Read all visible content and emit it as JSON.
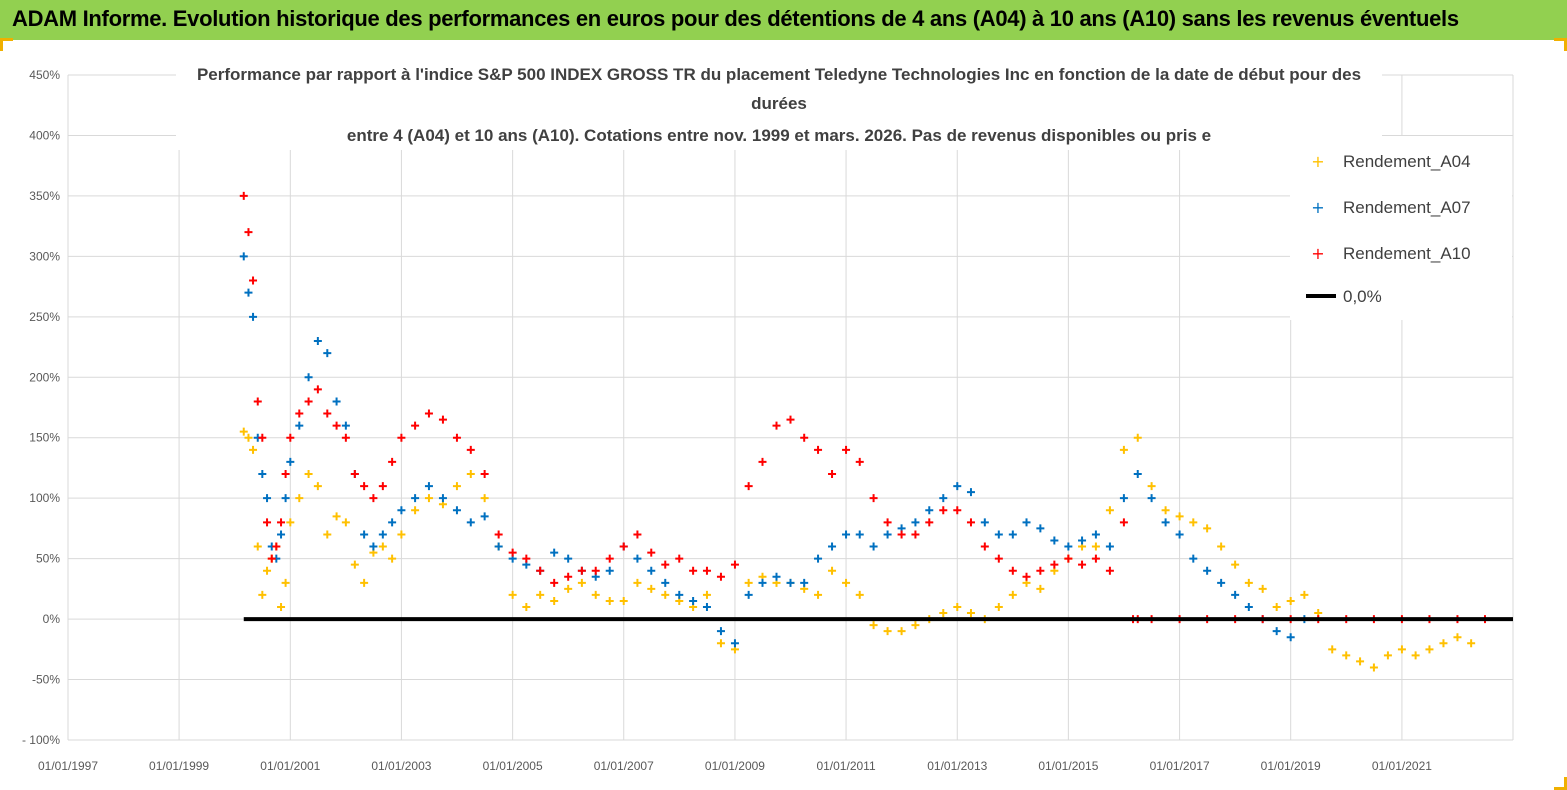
{
  "banner": {
    "title": "ADAM Informe. Evolution historique des performances en euros pour des détentions de 4 ans (A04) à 10 ans (A10) sans les revenus éventuels"
  },
  "colors": {
    "banner": "#92d050",
    "A04": "#ffc000",
    "A07": "#0070c0",
    "A10": "#ff0000",
    "zero": "#000000",
    "grid": "#d9d9d9"
  },
  "chart_data": {
    "type": "scatter",
    "title_lines": [
      "Performance par rapport à l'indice S&P 500 INDEX GROSS TR  du placement Teledyne Technologies Inc en fonction de la date de début pour des",
      "durées",
      "entre 4 (A04) et 10 ans (A10).  Cotations entre nov. 1999 et mars. 2026. Pas de  revenus disponibles ou pris e"
    ],
    "y_ticks": [
      "450%",
      "400%",
      "350%",
      "300%",
      "250%",
      "200%",
      "150%",
      "100%",
      "50%",
      "0%",
      "-50%",
      "- 100%"
    ],
    "x_ticks": [
      "01/01/1997",
      "01/01/1999",
      "01/01/2001",
      "01/01/2003",
      "01/01/2005",
      "01/01/2007",
      "01/01/2009",
      "01/01/2011",
      "01/01/2013",
      "01/01/2015",
      "01/01/2017",
      "01/01/2019",
      "01/01/2021"
    ],
    "ylim": [
      -100,
      450
    ],
    "xlim": [
      "1997-01-01",
      "2023-01-01"
    ],
    "grid": true,
    "legend_position": "right",
    "series": [
      {
        "name": "Rendement_A04",
        "color": "#ffc000",
        "marker": "+",
        "x": [
          "2000-03-01",
          "2000-04-01",
          "2000-05-01",
          "2000-06-01",
          "2000-07-01",
          "2000-08-01",
          "2000-09-01",
          "2000-10-01",
          "2000-11-01",
          "2000-12-01",
          "2001-01-01",
          "2001-03-01",
          "2001-05-01",
          "2001-07-01",
          "2001-09-01",
          "2001-11-01",
          "2002-01-01",
          "2002-03-01",
          "2002-05-01",
          "2002-07-01",
          "2002-09-01",
          "2002-11-01",
          "2003-01-01",
          "2003-04-01",
          "2003-07-01",
          "2003-10-01",
          "2004-01-01",
          "2004-04-01",
          "2004-07-01",
          "2004-10-01",
          "2005-01-01",
          "2005-04-01",
          "2005-07-01",
          "2005-10-01",
          "2006-01-01",
          "2006-04-01",
          "2006-07-01",
          "2006-10-01",
          "2007-01-01",
          "2007-04-01",
          "2007-07-01",
          "2007-10-01",
          "2008-01-01",
          "2008-04-01",
          "2008-07-01",
          "2008-10-01",
          "2009-01-01",
          "2009-04-01",
          "2009-07-01",
          "2009-10-01",
          "2010-01-01",
          "2010-04-01",
          "2010-07-01",
          "2010-10-01",
          "2011-01-01",
          "2011-04-01",
          "2011-07-01",
          "2011-10-01",
          "2012-01-01",
          "2012-04-01",
          "2012-07-01",
          "2012-10-01",
          "2013-01-01",
          "2013-04-01",
          "2013-07-01",
          "2013-10-01",
          "2014-01-01",
          "2014-04-01",
          "2014-07-01",
          "2014-10-01",
          "2015-01-01",
          "2015-04-01",
          "2015-07-01",
          "2015-10-01",
          "2016-01-01",
          "2016-04-01",
          "2016-07-01",
          "2016-10-01",
          "2017-01-01",
          "2017-04-01",
          "2017-07-01",
          "2017-10-01",
          "2018-01-01",
          "2018-04-01",
          "2018-07-01",
          "2018-10-01",
          "2019-01-01",
          "2019-04-01",
          "2019-07-01",
          "2019-10-01",
          "2020-01-01",
          "2020-04-01",
          "2020-07-01",
          "2020-10-01",
          "2021-01-01",
          "2021-04-01",
          "2021-07-01",
          "2021-10-01",
          "2022-01-01",
          "2022-04-01"
        ],
        "y": [
          155,
          150,
          140,
          60,
          20,
          40,
          50,
          60,
          10,
          30,
          80,
          100,
          120,
          110,
          70,
          85,
          80,
          45,
          30,
          55,
          60,
          50,
          70,
          90,
          100,
          95,
          110,
          120,
          100,
          60,
          20,
          10,
          20,
          15,
          25,
          30,
          20,
          15,
          15,
          30,
          25,
          20,
          15,
          10,
          20,
          -20,
          -25,
          30,
          35,
          30,
          30,
          25,
          20,
          40,
          30,
          20,
          -5,
          -10,
          -10,
          -5,
          0,
          5,
          10,
          5,
          0,
          10,
          20,
          30,
          25,
          40,
          50,
          60,
          60,
          90,
          140,
          150,
          110,
          90,
          85,
          80,
          75,
          60,
          45,
          30,
          25,
          10,
          15,
          20,
          5,
          -25,
          -30,
          -35,
          -40,
          -30,
          -25,
          -30,
          -25,
          -20,
          -15,
          -20
        ]
      },
      {
        "name": "Rendement_A07",
        "color": "#0070c0",
        "marker": "+",
        "x": [
          "2000-03-01",
          "2000-04-01",
          "2000-05-01",
          "2000-06-01",
          "2000-07-01",
          "2000-08-01",
          "2000-09-01",
          "2000-10-01",
          "2000-11-01",
          "2000-12-01",
          "2001-01-01",
          "2001-03-01",
          "2001-05-01",
          "2001-07-01",
          "2001-09-01",
          "2001-11-01",
          "2002-01-01",
          "2002-03-01",
          "2002-05-01",
          "2002-07-01",
          "2002-09-01",
          "2002-11-01",
          "2003-01-01",
          "2003-04-01",
          "2003-07-01",
          "2003-10-01",
          "2004-01-01",
          "2004-04-01",
          "2004-07-01",
          "2004-10-01",
          "2005-01-01",
          "2005-04-01",
          "2005-07-01",
          "2005-10-01",
          "2006-01-01",
          "2006-04-01",
          "2006-07-01",
          "2006-10-01",
          "2007-01-01",
          "2007-04-01",
          "2007-07-01",
          "2007-10-01",
          "2008-01-01",
          "2008-04-01",
          "2008-07-01",
          "2008-10-01",
          "2009-01-01",
          "2009-04-01",
          "2009-07-01",
          "2009-10-01",
          "2010-01-01",
          "2010-04-01",
          "2010-07-01",
          "2010-10-01",
          "2011-01-01",
          "2011-04-01",
          "2011-07-01",
          "2011-10-01",
          "2012-01-01",
          "2012-04-01",
          "2012-07-01",
          "2012-10-01",
          "2013-01-01",
          "2013-04-01",
          "2013-07-01",
          "2013-10-01",
          "2014-01-01",
          "2014-04-01",
          "2014-07-01",
          "2014-10-01",
          "2015-01-01",
          "2015-04-01",
          "2015-07-01",
          "2015-10-01",
          "2016-01-01",
          "2016-04-01",
          "2016-07-01",
          "2016-10-01",
          "2017-01-01",
          "2017-04-01",
          "2017-07-01",
          "2017-10-01",
          "2018-01-01",
          "2018-04-01",
          "2018-07-01",
          "2018-10-01",
          "2019-01-01",
          "2019-04-01"
        ],
        "y": [
          300,
          270,
          250,
          150,
          120,
          100,
          60,
          50,
          70,
          100,
          130,
          160,
          200,
          230,
          220,
          180,
          160,
          120,
          70,
          60,
          70,
          80,
          90,
          100,
          110,
          100,
          90,
          80,
          85,
          60,
          50,
          45,
          40,
          55,
          50,
          40,
          35,
          40,
          60,
          50,
          40,
          30,
          20,
          15,
          10,
          -10,
          -20,
          20,
          30,
          35,
          30,
          30,
          50,
          60,
          70,
          70,
          60,
          70,
          75,
          80,
          90,
          100,
          110,
          105,
          80,
          70,
          70,
          80,
          75,
          65,
          60,
          65,
          70,
          60,
          100,
          120,
          100,
          80,
          70,
          50,
          40,
          30,
          20,
          10,
          0,
          -10,
          -15,
          0
        ]
      },
      {
        "name": "Rendement_A10",
        "color": "#ff0000",
        "marker": "+",
        "x": [
          "2000-03-01",
          "2000-04-01",
          "2000-05-01",
          "2000-06-01",
          "2000-07-01",
          "2000-08-01",
          "2000-09-01",
          "2000-10-01",
          "2000-11-01",
          "2000-12-01",
          "2001-01-01",
          "2001-03-01",
          "2001-05-01",
          "2001-07-01",
          "2001-09-01",
          "2001-11-01",
          "2002-01-01",
          "2002-03-01",
          "2002-05-01",
          "2002-07-01",
          "2002-09-01",
          "2002-11-01",
          "2003-01-01",
          "2003-04-01",
          "2003-07-01",
          "2003-10-01",
          "2004-01-01",
          "2004-04-01",
          "2004-07-01",
          "2004-10-01",
          "2005-01-01",
          "2005-04-01",
          "2005-07-01",
          "2005-10-01",
          "2006-01-01",
          "2006-04-01",
          "2006-07-01",
          "2006-10-01",
          "2007-01-01",
          "2007-04-01",
          "2007-07-01",
          "2007-10-01",
          "2008-01-01",
          "2008-04-01",
          "2008-07-01",
          "2008-10-01",
          "2009-01-01",
          "2009-04-01",
          "2009-07-01",
          "2009-10-01",
          "2010-01-01",
          "2010-04-01",
          "2010-07-01",
          "2010-10-01",
          "2011-01-01",
          "2011-04-01",
          "2011-07-01",
          "2011-10-01",
          "2012-01-01",
          "2012-04-01",
          "2012-07-01",
          "2012-10-01",
          "2013-01-01",
          "2013-04-01",
          "2013-07-01",
          "2013-10-01",
          "2014-01-01",
          "2014-04-01",
          "2014-07-01",
          "2014-10-01",
          "2015-01-01",
          "2015-04-01",
          "2015-07-01",
          "2015-10-01",
          "2016-01-01",
          "2016-03-01",
          "2016-04-01",
          "2016-07-01",
          "2017-01-01",
          "2017-07-01",
          "2018-01-01",
          "2018-07-01",
          "2019-01-01",
          "2019-07-01",
          "2020-01-01",
          "2020-07-01",
          "2021-01-01",
          "2021-07-01",
          "2022-01-01",
          "2022-07-01"
        ],
        "y": [
          350,
          320,
          280,
          180,
          150,
          80,
          50,
          60,
          80,
          120,
          150,
          170,
          180,
          190,
          170,
          160,
          150,
          120,
          110,
          100,
          110,
          130,
          150,
          160,
          170,
          165,
          150,
          140,
          120,
          70,
          55,
          50,
          40,
          30,
          35,
          40,
          40,
          50,
          60,
          70,
          55,
          45,
          50,
          40,
          40,
          35,
          45,
          110,
          130,
          160,
          165,
          150,
          140,
          120,
          140,
          130,
          100,
          80,
          70,
          70,
          80,
          90,
          90,
          80,
          60,
          50,
          40,
          35,
          40,
          45,
          50,
          45,
          50,
          40,
          80,
          0,
          0,
          0,
          0,
          0,
          0,
          0,
          0,
          0,
          0,
          0,
          0,
          0,
          0,
          0
        ]
      },
      {
        "name": "0,0%",
        "color": "#000000",
        "type": "line",
        "x": [
          "2000-03-01",
          "2023-01-01"
        ],
        "y": [
          0,
          0
        ]
      }
    ]
  }
}
